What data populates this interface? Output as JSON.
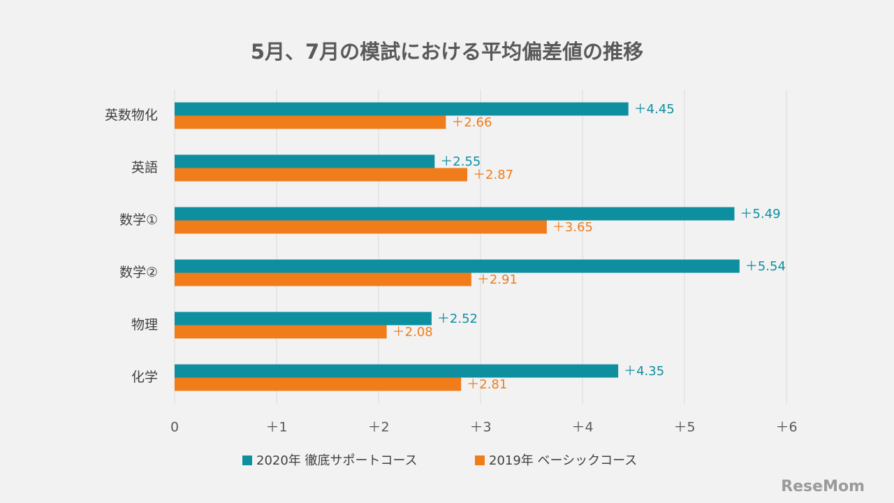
{
  "chart_data": {
    "type": "bar",
    "orientation": "horizontal",
    "title": "5月、7月の模試における平均偏差値の推移",
    "categories": [
      "英数物化",
      "英語",
      "数学①",
      "数学②",
      "物理",
      "化学"
    ],
    "series": [
      {
        "name": "2020年 徹底サポートコース",
        "color": "#0e8fa0",
        "values": [
          4.45,
          2.55,
          5.49,
          5.54,
          2.52,
          4.35
        ],
        "value_labels": [
          "＋4.45",
          "＋2.55",
          "＋5.49",
          "＋5.54",
          "＋2.52",
          "＋4.35"
        ]
      },
      {
        "name": "2019年 ベーシックコース",
        "color": "#f07c1a",
        "values": [
          2.66,
          2.87,
          3.65,
          2.91,
          2.08,
          2.81
        ],
        "value_labels": [
          "＋2.66",
          "＋2.87",
          "＋3.65",
          "＋2.91",
          "＋2.08",
          "＋2.81"
        ]
      }
    ],
    "xlim": [
      0,
      6
    ],
    "xticks": [
      0,
      {
        "value": 1,
        "label": "＋1"
      },
      {
        "value": 2,
        "label": "＋2"
      },
      {
        "value": 3,
        "label": "＋3"
      },
      {
        "value": 4,
        "label": "＋4"
      },
      {
        "value": 5,
        "label": "＋5"
      },
      {
        "value": 6,
        "label": "＋6"
      }
    ],
    "grid": true,
    "legend": "bottom",
    "watermark": "ReseMom"
  }
}
